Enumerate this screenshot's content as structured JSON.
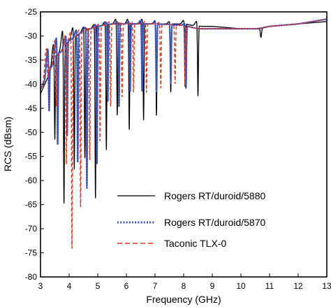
{
  "chart_data": {
    "type": "line",
    "title": "",
    "xlabel": "Frequency (GHz)",
    "ylabel": "RCS (dBsm)",
    "xlim": [
      3,
      13
    ],
    "ylim": [
      -80,
      -25
    ],
    "xticks": [
      3,
      4,
      5,
      6,
      7,
      8,
      9,
      10,
      11,
      12,
      13
    ],
    "yticks": [
      -25,
      -30,
      -35,
      -40,
      -45,
      -50,
      -55,
      -60,
      -65,
      -70,
      -75,
      -80
    ],
    "grid": false,
    "legend_position": "bottom-right",
    "series": [
      {
        "name": "Rogers RT/duroid/5880",
        "color": "#000000",
        "style": "solid",
        "baseline": [
          [
            3.0,
            -42
          ],
          [
            3.3,
            -38
          ],
          [
            3.6,
            -34
          ],
          [
            4.0,
            -31
          ],
          [
            4.5,
            -29
          ],
          [
            5.0,
            -28
          ],
          [
            5.5,
            -27.5
          ],
          [
            6.0,
            -27.5
          ],
          [
            6.5,
            -27.5
          ],
          [
            7.0,
            -27.5
          ],
          [
            8.0,
            -27.5
          ],
          [
            8.5,
            -28
          ],
          [
            9.0,
            -28
          ],
          [
            10.0,
            -28.5
          ],
          [
            10.5,
            -28.5
          ],
          [
            11.0,
            -28
          ],
          [
            12.0,
            -27.5
          ],
          [
            13.0,
            -27
          ]
        ],
        "resonances": [
          {
            "f": 3.5,
            "peak": -31,
            "dip": -54
          },
          {
            "f": 3.82,
            "peak": -28.5,
            "dip": -67
          },
          {
            "f": 4.18,
            "peak": -28,
            "dip": -59
          },
          {
            "f": 4.55,
            "peak": -28,
            "dip": -56
          },
          {
            "f": 4.92,
            "peak": -27.5,
            "dip": -64
          },
          {
            "f": 5.3,
            "peak": -27,
            "dip": -54
          },
          {
            "f": 5.68,
            "peak": -26.5,
            "dip": -47
          },
          {
            "f": 6.1,
            "peak": -26.5,
            "dip": -50
          },
          {
            "f": 6.6,
            "peak": -26.5,
            "dip": -48
          },
          {
            "f": 7.05,
            "peak": -26.8,
            "dip": -47
          },
          {
            "f": 7.55,
            "peak": -27,
            "dip": -42
          },
          {
            "f": 8.05,
            "peak": -26.8,
            "dip": -41
          },
          {
            "f": 8.5,
            "peak": -27,
            "dip": -43
          }
        ],
        "notches": [
          {
            "f": 10.7,
            "depth": -2
          }
        ]
      },
      {
        "name": "Rogers RT/duroid/5870",
        "color": "#3a52c0",
        "style": "dotted",
        "baseline": [
          [
            3.0,
            -41
          ],
          [
            3.2,
            -39
          ],
          [
            3.5,
            -35
          ],
          [
            4.0,
            -31
          ],
          [
            4.5,
            -29
          ],
          [
            5.0,
            -28
          ],
          [
            5.5,
            -27.5
          ],
          [
            6.0,
            -27.5
          ],
          [
            7.0,
            -27.5
          ],
          [
            8.0,
            -27.8
          ],
          [
            8.5,
            -28.5
          ],
          [
            9.0,
            -28.5
          ],
          [
            10.0,
            -28.5
          ],
          [
            10.6,
            -28.5
          ],
          [
            11.0,
            -28
          ],
          [
            12.0,
            -27.5
          ],
          [
            13.0,
            -26.5
          ]
        ],
        "resonances": [
          {
            "f": 3.3,
            "peak": -32,
            "dip": -49
          },
          {
            "f": 3.6,
            "peak": -30,
            "dip": -55
          },
          {
            "f": 3.93,
            "peak": -29.5,
            "dip": -52
          },
          {
            "f": 4.3,
            "peak": -28.5,
            "dip": -57
          },
          {
            "f": 4.62,
            "peak": -28,
            "dip": -62
          },
          {
            "f": 4.97,
            "peak": -27.5,
            "dip": -57
          },
          {
            "f": 5.35,
            "peak": -27,
            "dip": -44
          },
          {
            "f": 5.74,
            "peak": -27,
            "dip": -45
          },
          {
            "f": 6.13,
            "peak": -27,
            "dip": -42
          },
          {
            "f": 6.55,
            "peak": -26.8,
            "dip": -42
          },
          {
            "f": 7.05,
            "peak": -27,
            "dip": -42
          },
          {
            "f": 7.55,
            "peak": -27.5,
            "dip": -40
          },
          {
            "f": 8.08,
            "peak": -27.5,
            "dip": -41
          }
        ],
        "notches": []
      },
      {
        "name": "Taconic TLX-0",
        "color": "#e8391e",
        "style": "dashed",
        "baseline": [
          [
            3.0,
            -41
          ],
          [
            3.2,
            -39
          ],
          [
            3.5,
            -35
          ],
          [
            4.0,
            -31
          ],
          [
            4.5,
            -29
          ],
          [
            5.0,
            -28
          ],
          [
            5.5,
            -27.5
          ],
          [
            6.0,
            -27.5
          ],
          [
            7.0,
            -27.5
          ],
          [
            8.0,
            -27.8
          ],
          [
            8.5,
            -28.5
          ],
          [
            9.0,
            -28.5
          ],
          [
            10.0,
            -28.5
          ],
          [
            10.6,
            -28.5
          ],
          [
            11.0,
            -28
          ],
          [
            12.0,
            -27.5
          ],
          [
            13.0,
            -26.5
          ]
        ],
        "resonances": [
          {
            "f": 3.25,
            "peak": -32,
            "dip": -42
          },
          {
            "f": 3.55,
            "peak": -30.5,
            "dip": -47
          },
          {
            "f": 3.9,
            "peak": -29.5,
            "dip": -58
          },
          {
            "f": 4.1,
            "peak": -29,
            "dip": -75
          },
          {
            "f": 4.4,
            "peak": -28.5,
            "dip": -66
          },
          {
            "f": 4.72,
            "peak": -28,
            "dip": -56
          },
          {
            "f": 5.08,
            "peak": -27.5,
            "dip": -52
          },
          {
            "f": 5.45,
            "peak": -27,
            "dip": -45
          },
          {
            "f": 5.85,
            "peak": -27,
            "dip": -43
          },
          {
            "f": 6.25,
            "peak": -27,
            "dip": -42
          },
          {
            "f": 6.7,
            "peak": -27,
            "dip": -42
          },
          {
            "f": 7.2,
            "peak": -27.2,
            "dip": -41
          },
          {
            "f": 7.7,
            "peak": -27.5,
            "dip": -40
          },
          {
            "f": 8.05,
            "peak": -28,
            "dip": -40
          }
        ],
        "notches": []
      }
    ]
  }
}
